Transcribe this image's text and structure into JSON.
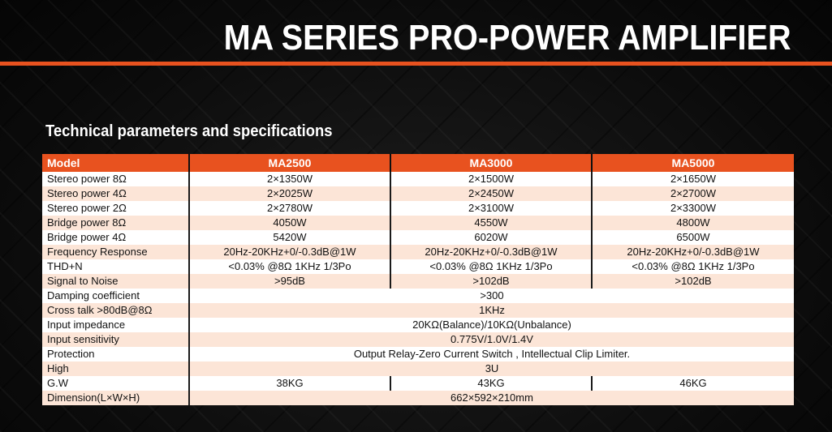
{
  "header": {
    "title": "MA SERIES PRO-POWER AMPLIFIER",
    "subtitle": "Technical parameters and specifications"
  },
  "colors": {
    "accent": "#e8521f",
    "row_alt": "#fce5d7",
    "background": "#0c0c0c"
  },
  "table": {
    "columns": [
      "Model",
      "MA2500",
      "MA3000",
      "MA5000"
    ],
    "rows": [
      {
        "label": "Stereo power 8Ω",
        "values": [
          "2×1350W",
          "2×1500W",
          "2×1650W"
        ]
      },
      {
        "label": "Stereo power 4Ω",
        "values": [
          "2×2025W",
          "2×2450W",
          "2×2700W"
        ]
      },
      {
        "label": "Stereo power 2Ω",
        "values": [
          "2×2780W",
          "2×3100W",
          "2×3300W"
        ]
      },
      {
        "label": "Bridge power 8Ω",
        "values": [
          "4050W",
          "4550W",
          "4800W"
        ]
      },
      {
        "label": "Bridge power 4Ω",
        "values": [
          "5420W",
          "6020W",
          "6500W"
        ]
      },
      {
        "label": "Frequency Response",
        "values": [
          "20Hz-20KHz+0/-0.3dB@1W",
          "20Hz-20KHz+0/-0.3dB@1W",
          "20Hz-20KHz+0/-0.3dB@1W"
        ]
      },
      {
        "label": "THD+N",
        "values": [
          "<0.03% @8Ω 1KHz 1/3Po",
          "<0.03% @8Ω 1KHz 1/3Po",
          "<0.03% @8Ω 1KHz 1/3Po"
        ]
      },
      {
        "label": "Signal to Noise",
        "values": [
          ">95dB",
          ">102dB",
          ">102dB"
        ]
      },
      {
        "label": "Damping coefficient",
        "values": [
          ">300"
        ]
      },
      {
        "label": "Cross talk >80dB@8Ω",
        "values": [
          "1KHz"
        ]
      },
      {
        "label": "Input impedance",
        "values": [
          "20KΩ(Balance)/10KΩ(Unbalance)"
        ]
      },
      {
        "label": "Input sensitivity",
        "values": [
          "0.775V/1.0V/1.4V"
        ]
      },
      {
        "label": "Protection",
        "values": [
          "Output Relay-Zero Current Switch , Intellectual Clip Limiter."
        ]
      },
      {
        "label": "High",
        "values": [
          "3U"
        ]
      },
      {
        "label": "G.W",
        "values": [
          "38KG",
          "43KG",
          "46KG"
        ]
      },
      {
        "label": "Dimension(L×W×H)",
        "values": [
          "662×592×210mm"
        ]
      }
    ]
  }
}
